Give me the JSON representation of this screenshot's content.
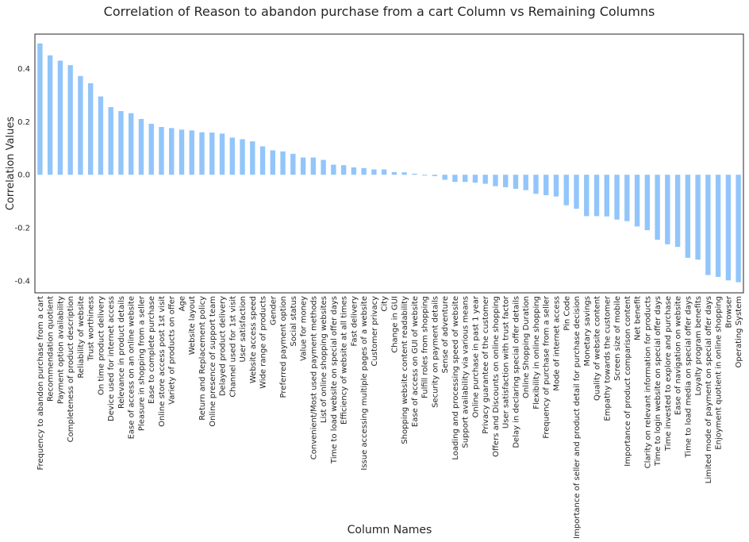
{
  "chart_data": {
    "type": "bar",
    "title": "Correlation of Reason to abandon purchase from a cart Column vs Remaining Columns",
    "xlabel": "Column Names",
    "ylabel": "Correlation Values",
    "ylim": [
      -0.445,
      0.53
    ],
    "yticks": [
      "-0.4",
      "-0.2",
      "0.0",
      "0.2",
      "0.4"
    ],
    "grid": false,
    "bar_color": "#92c5fa",
    "categories": [
      "Frequency to abandon purchase from a cart",
      "Recommendation quotient",
      "Payment option availability",
      "Completeness of product description",
      "Reliability of website",
      "Trust worthiness",
      "On time product delivery",
      "Device used for internet access",
      "Relevance in product details",
      "Ease of access on an online website",
      "Pleasure in shopping from a seller",
      "Ease to complete purchase",
      "Online store access post 1st visit",
      "Variety of products on offer",
      "Age",
      "Website layout",
      "Return and Replacement policy",
      "Online presence of support team",
      "Delayed product delivery",
      "Channel used for 1st visit",
      "User satisfaction",
      "Website access speed",
      "Wide range of products",
      "Gender",
      "Preferred payment option",
      "Social status",
      "Value for money",
      "Convenient/Most used payment methods",
      "List of online shopping websites",
      "Time to load website on special offer days",
      "Efficiency of website at all times",
      "Fast delivery",
      "Issue accessing multiple pages of a website",
      "Customer privacy",
      "City",
      "Change in GUI",
      "Shopping website content readability",
      "Ease of access on GUI of website",
      "Fulfill roles from shopping",
      "Security on payment details",
      "Sense of adventure",
      "Loading and processing speed of website",
      "Support availability via various means",
      "Online purchase in past 1 year",
      "Privacy guarantee of the customer",
      "Offers and Discounts on online shopping",
      "User satisfaction with trust factor",
      "Delay in declaring special offer details",
      "Online Shopping Duration",
      "Flexibility in online shopping",
      "Frequency of purchase from a seller",
      "Mode of internet access",
      "Pin Code",
      "Importance of seller and product detail for purchase decision",
      "Monetary savings",
      "Quality of website content",
      "Empathy towards the customer",
      "Screen size of mobile",
      "Importance of product comparison content",
      "Net benefit",
      "Clarity on relevant information for products",
      "Time to login website on special offer days",
      "Time invested to explore and purchase",
      "Ease of navigation on website",
      "Time to load media on special offer days",
      "Loyalty program benefits",
      "Limited mode of payment on special offer days",
      "Enjoyment quotient in online shopping",
      "Browser",
      "Operating System"
    ],
    "values": [
      0.495,
      0.45,
      0.43,
      0.413,
      0.372,
      0.345,
      0.295,
      0.255,
      0.24,
      0.232,
      0.21,
      0.192,
      0.18,
      0.176,
      0.17,
      0.167,
      0.16,
      0.159,
      0.155,
      0.14,
      0.134,
      0.126,
      0.107,
      0.092,
      0.088,
      0.079,
      0.065,
      0.065,
      0.056,
      0.038,
      0.036,
      0.028,
      0.025,
      0.02,
      0.02,
      0.01,
      0.009,
      0.004,
      -0.003,
      -0.005,
      -0.019,
      -0.027,
      -0.027,
      -0.03,
      -0.034,
      -0.043,
      -0.047,
      -0.053,
      -0.058,
      -0.072,
      -0.077,
      -0.082,
      -0.115,
      -0.128,
      -0.156,
      -0.156,
      -0.157,
      -0.169,
      -0.175,
      -0.195,
      -0.209,
      -0.245,
      -0.262,
      -0.272,
      -0.313,
      -0.32,
      -0.378,
      -0.385,
      -0.398,
      -0.405
    ]
  }
}
